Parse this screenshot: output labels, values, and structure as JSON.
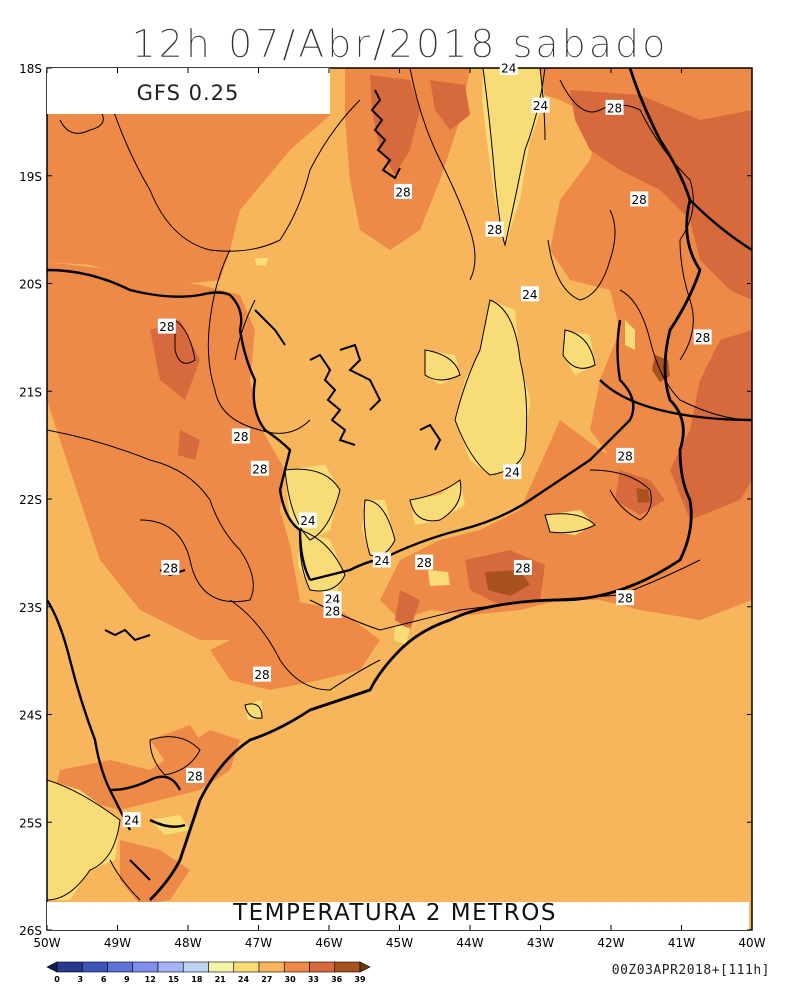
{
  "title": "12h 07/Abr/2018 sabado",
  "model_label": "GFS 0.25",
  "variable_label": "TEMPERATURA 2 METROS",
  "run_label": "00Z03APR2018+[111h]",
  "lat_labels": [
    "18S",
    "19S",
    "20S",
    "21S",
    "22S",
    "23S",
    "24S",
    "25S",
    "26S"
  ],
  "lon_labels": [
    "50W",
    "49W",
    "48W",
    "47W",
    "46W",
    "45W",
    "44W",
    "43W",
    "42W",
    "41W",
    "40W"
  ],
  "colorbar": {
    "ticks": [
      "0",
      "3",
      "6",
      "9",
      "12",
      "15",
      "18",
      "21",
      "24",
      "27",
      "30",
      "33",
      "36",
      "39"
    ],
    "colors": [
      "#0c1c5c",
      "#26398f",
      "#3c55b8",
      "#5a73d6",
      "#7f8fec",
      "#a5b3f6",
      "#bcd5f5",
      "#f6f2a8",
      "#f8dc78",
      "#f8b65c",
      "#ee8a48",
      "#d76a3c",
      "#a8531e",
      "#6e3a0a"
    ]
  },
  "map_colors": {
    "t21_24": "#f8dc78",
    "t24_27": "#f8b65c",
    "t27_30": "#ee8a48",
    "t30_33": "#d76a3c",
    "t33_36": "#a8531e",
    "coast": "#000000",
    "contour": "#000000"
  },
  "contour_labels": [
    {
      "text": "24",
      "lon": -43.45,
      "lat": -18.0
    },
    {
      "text": "24",
      "lon": -43.0,
      "lat": -18.35
    },
    {
      "text": "28",
      "lon": -41.95,
      "lat": -18.37
    },
    {
      "text": "28",
      "lon": -44.95,
      "lat": -19.15
    },
    {
      "text": "28",
      "lon": -41.6,
      "lat": -19.22
    },
    {
      "text": "28",
      "lon": -43.65,
      "lat": -19.5
    },
    {
      "text": "24",
      "lon": -43.15,
      "lat": -20.1
    },
    {
      "text": "28",
      "lon": -48.3,
      "lat": -20.4
    },
    {
      "text": "28",
      "lon": -40.7,
      "lat": -20.5
    },
    {
      "text": "28",
      "lon": -47.25,
      "lat": -21.42
    },
    {
      "text": "28",
      "lon": -41.8,
      "lat": -21.6
    },
    {
      "text": "24",
      "lon": -43.4,
      "lat": -21.75
    },
    {
      "text": "28",
      "lon": -46.98,
      "lat": -21.72
    },
    {
      "text": "24",
      "lon": -46.3,
      "lat": -22.2
    },
    {
      "text": "24",
      "lon": -45.25,
      "lat": -22.57
    },
    {
      "text": "28",
      "lon": -44.65,
      "lat": -22.59
    },
    {
      "text": "28",
      "lon": -48.25,
      "lat": -22.64
    },
    {
      "text": "28",
      "lon": -43.25,
      "lat": -22.64
    },
    {
      "text": "24",
      "lon": -45.95,
      "lat": -22.93
    },
    {
      "text": "28",
      "lon": -45.95,
      "lat": -23.04
    },
    {
      "text": "28",
      "lon": -41.8,
      "lat": -22.92
    },
    {
      "text": "28",
      "lon": -46.95,
      "lat": -23.63
    },
    {
      "text": "28",
      "lon": -47.9,
      "lat": -24.57
    },
    {
      "text": "24",
      "lon": -48.8,
      "lat": -24.98
    }
  ]
}
